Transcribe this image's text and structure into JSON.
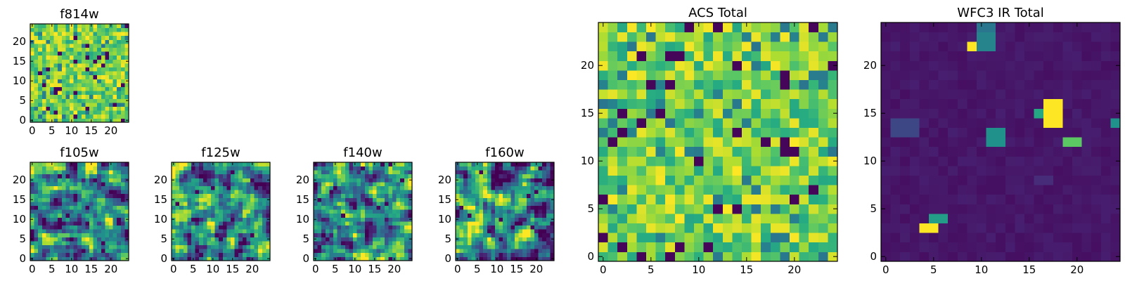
{
  "chart_data": [
    {
      "type": "heatmap",
      "title": "f814w",
      "grid_size": 25,
      "seed": 11,
      "pattern": "noise",
      "xticks": [
        0,
        5,
        10,
        15,
        20
      ],
      "yticks": [
        0,
        5,
        10,
        15,
        20
      ],
      "colormap": "viridis",
      "value_range": [
        0,
        1
      ]
    },
    {
      "type": "heatmap",
      "title": "f105w",
      "grid_size": 25,
      "seed": 23,
      "pattern": "smooth",
      "xticks": [
        0,
        5,
        10,
        15,
        20
      ],
      "yticks": [
        0,
        5,
        10,
        15,
        20
      ],
      "colormap": "viridis",
      "value_range": [
        0,
        1
      ]
    },
    {
      "type": "heatmap",
      "title": "f125w",
      "grid_size": 25,
      "seed": 37,
      "pattern": "smooth",
      "xticks": [
        0,
        5,
        10,
        15,
        20
      ],
      "yticks": [
        0,
        5,
        10,
        15,
        20
      ],
      "colormap": "viridis",
      "value_range": [
        0,
        1
      ]
    },
    {
      "type": "heatmap",
      "title": "f140w",
      "grid_size": 25,
      "seed": 41,
      "pattern": "smooth",
      "xticks": [
        0,
        5,
        10,
        15,
        20
      ],
      "yticks": [
        0,
        5,
        10,
        15,
        20
      ],
      "colormap": "viridis",
      "value_range": [
        0,
        1
      ]
    },
    {
      "type": "heatmap",
      "title": "f160w",
      "grid_size": 25,
      "seed": 53,
      "pattern": "smooth",
      "xticks": [
        0,
        5,
        10,
        15,
        20
      ],
      "yticks": [
        0,
        5,
        10,
        15,
        20
      ],
      "colormap": "viridis",
      "value_range": [
        0,
        1
      ]
    },
    {
      "type": "heatmap",
      "title": "ACS Total",
      "grid_size": 25,
      "seed": 67,
      "pattern": "noise",
      "xticks": [
        0,
        5,
        10,
        15,
        20
      ],
      "yticks": [
        0,
        5,
        10,
        15,
        20
      ],
      "colormap": "viridis",
      "value_range": [
        0,
        1
      ]
    },
    {
      "type": "heatmap",
      "title": "WFC3 IR Total",
      "grid_size": 25,
      "seed": 79,
      "pattern": "sources",
      "background": 0.05,
      "sources": [
        {
          "x": 4,
          "y": 3,
          "w": 2,
          "h": 1,
          "value": 1.0
        },
        {
          "x": 5,
          "y": 4,
          "w": 2,
          "h": 1,
          "value": 0.55
        },
        {
          "x": 17,
          "y": 14,
          "w": 2,
          "h": 3,
          "value": 1.0
        },
        {
          "x": 16,
          "y": 15,
          "w": 1,
          "h": 1,
          "value": 0.6
        },
        {
          "x": 19,
          "y": 12,
          "w": 2,
          "h": 1,
          "value": 0.75
        },
        {
          "x": 11,
          "y": 12,
          "w": 2,
          "h": 2,
          "value": 0.5
        },
        {
          "x": 9,
          "y": 22,
          "w": 1,
          "h": 1,
          "value": 1.0
        },
        {
          "x": 10,
          "y": 22,
          "w": 2,
          "h": 2,
          "value": 0.45
        },
        {
          "x": 10,
          "y": 24,
          "w": 2,
          "h": 1,
          "value": 0.4
        },
        {
          "x": 24,
          "y": 14,
          "w": 1,
          "h": 1,
          "value": 0.5
        },
        {
          "x": 1,
          "y": 13,
          "w": 3,
          "h": 2,
          "value": 0.22
        },
        {
          "x": 16,
          "y": 8,
          "w": 2,
          "h": 1,
          "value": 0.15
        }
      ],
      "xticks": [
        0,
        5,
        10,
        15,
        20
      ],
      "yticks": [
        0,
        5,
        10,
        15,
        20
      ],
      "colormap": "viridis",
      "value_range": [
        0,
        1
      ]
    }
  ]
}
